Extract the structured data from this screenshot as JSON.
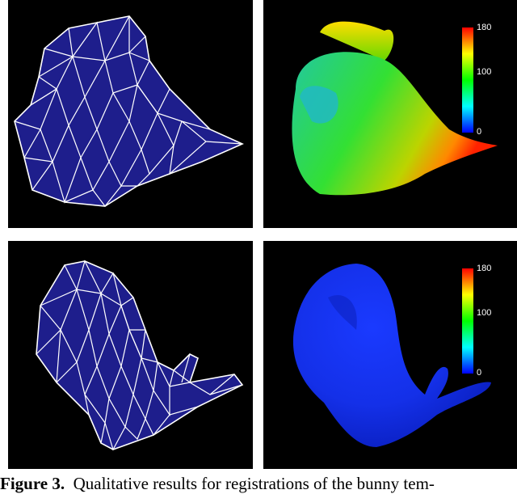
{
  "figure": {
    "caption_label": "Figure 3.",
    "caption_text": "  Qualitative results for registrations of the bunny tem-"
  },
  "colorbar": {
    "ticks": {
      "max": "180",
      "mid": "100",
      "min": "0"
    },
    "colors": [
      "#0000ff",
      "#00ffff",
      "#00ff00",
      "#ffff00",
      "#ff0000"
    ]
  },
  "colors": {
    "mesh_fill": "#1e1e8c",
    "mesh_line": "#ffffff",
    "panel_bg": "#000000"
  }
}
